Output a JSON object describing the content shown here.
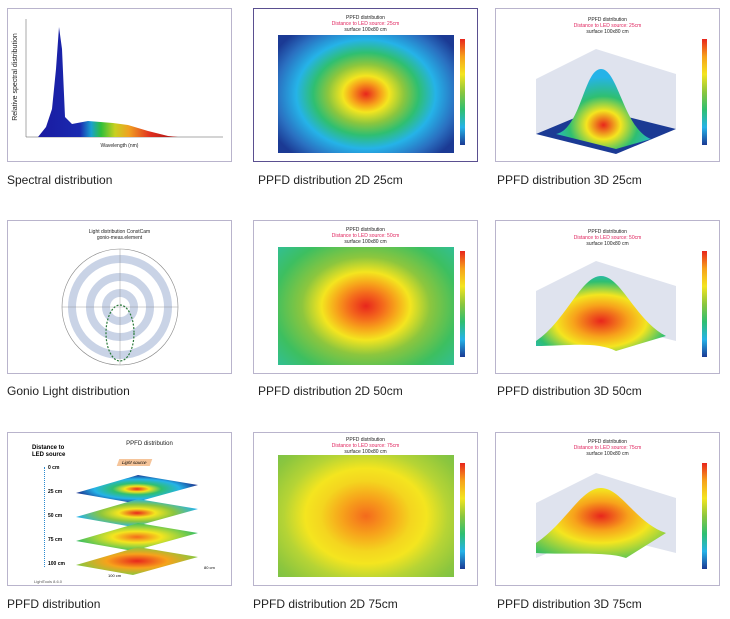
{
  "gallery": [
    {
      "caption": "Spectral distribution",
      "ylabel": "Relative spectral distribution",
      "xlabel": "Wavelength (nm)"
    },
    {
      "caption": "PPFD distribution 2D 25cm",
      "title": "PPFD distribution",
      "distance": "Distance to LED source: 25cm",
      "surface": "surface 100x80 cm"
    },
    {
      "caption": "PPFD distribution 3D 25cm",
      "title": "PPFD distribution",
      "distance": "Distance to LED source: 25cm",
      "surface": "surface 100x80 cm"
    },
    {
      "caption": "Gonio Light distribution",
      "title": "Light distribution ConstCam",
      "subtitle": "gonio-meas.element"
    },
    {
      "caption": "PPFD distribution 2D 50cm",
      "title": "PPFD distribution",
      "distance": "Distance to LED source: 50cm",
      "surface": "surface 100x80 cm"
    },
    {
      "caption": "PPFD distribution 3D 50cm",
      "title": "PPFD distribution",
      "distance": "Distance to LED source: 50cm",
      "surface": "surface 100x80 cm"
    },
    {
      "caption": "PPFD distribution",
      "title": "PPFD distribution",
      "heading": "Distance to LED source",
      "source": "Light source",
      "levels": [
        "0 cm",
        "25 cm",
        "50 cm",
        "75 cm",
        "100 cm"
      ],
      "width_label": "100 cm",
      "depth_label": "80 cm",
      "footer": "LightTools 8.6.0"
    },
    {
      "caption": "PPFD distribution 2D 75cm",
      "title": "PPFD distribution",
      "distance": "Distance to LED source: 75cm",
      "surface": "surface 100x80 cm"
    },
    {
      "caption": "PPFD distribution 3D 75cm",
      "title": "PPFD distribution",
      "distance": "Distance to LED source: 75cm",
      "surface": "surface 100x80 cm"
    }
  ]
}
